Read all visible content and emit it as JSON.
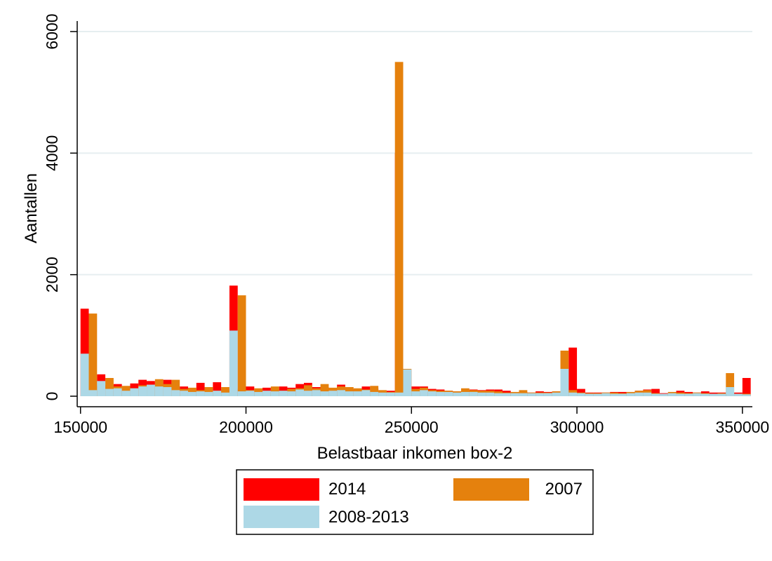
{
  "chart_data": {
    "type": "bar",
    "xlabel": "Belastbaar inkomen box-2",
    "ylabel": "Aantallen",
    "xlim": [
      149000,
      353000
    ],
    "ylim": [
      0,
      6000
    ],
    "x_ticks": [
      150000,
      200000,
      250000,
      300000,
      350000
    ],
    "y_ticks": [
      0,
      2000,
      4000,
      6000
    ],
    "grid": "horizontal",
    "legend_position": "bottom",
    "bin_width": 2500,
    "series": [
      {
        "name": "2014",
        "color": "#ff0000",
        "x": [
          151250,
          153750,
          156250,
          158750,
          161250,
          163750,
          166250,
          168750,
          171250,
          173750,
          176250,
          178750,
          181250,
          183750,
          186250,
          188750,
          191250,
          193750,
          196250,
          198750,
          201250,
          203750,
          206250,
          208750,
          211250,
          213750,
          216250,
          218750,
          221250,
          223750,
          226250,
          228750,
          231250,
          233750,
          236250,
          238750,
          241250,
          243750,
          246250,
          248750,
          251250,
          253750,
          256250,
          258750,
          261250,
          263750,
          266250,
          268750,
          271250,
          273750,
          276250,
          278750,
          281250,
          283750,
          286250,
          288750,
          291250,
          293750,
          296250,
          298750,
          301250,
          303750,
          306250,
          308750,
          311250,
          313750,
          316250,
          318750,
          321250,
          323750,
          326250,
          328750,
          331250,
          333750,
          336250,
          338750,
          341250,
          343750,
          346250,
          348750,
          351250
        ],
        "values": [
          1440,
          170,
          360,
          180,
          200,
          140,
          210,
          270,
          250,
          230,
          270,
          130,
          160,
          110,
          220,
          90,
          230,
          110,
          1820,
          120,
          160,
          90,
          140,
          110,
          160,
          140,
          200,
          220,
          150,
          150,
          120,
          190,
          110,
          120,
          160,
          130,
          80,
          90,
          4000,
          430,
          160,
          160,
          120,
          110,
          90,
          80,
          90,
          110,
          100,
          110,
          110,
          90,
          60,
          70,
          60,
          80,
          70,
          80,
          100,
          800,
          120,
          60,
          60,
          60,
          70,
          70,
          60,
          90,
          110,
          120,
          50,
          50,
          90,
          70,
          60,
          80,
          60,
          60,
          40,
          60,
          300
        ]
      },
      {
        "name": "2007",
        "color": "#e5810d",
        "x": [
          153750,
          156250,
          158750,
          161250,
          163750,
          166250,
          168750,
          171250,
          173750,
          176250,
          178750,
          181250,
          183750,
          186250,
          188750,
          191250,
          193750,
          196250,
          198750,
          201250,
          203750,
          206250,
          208750,
          211250,
          213750,
          216250,
          218750,
          221250,
          223750,
          226250,
          228750,
          231250,
          233750,
          236250,
          238750,
          241250,
          243750,
          246250,
          248750,
          251250,
          253750,
          256250,
          258750,
          261250,
          263750,
          266250,
          268750,
          271250,
          273750,
          276250,
          278750,
          281250,
          283750,
          286250,
          288750,
          291250,
          293750,
          296250,
          298750,
          301250,
          303750,
          306250,
          308750,
          311250,
          313750,
          316250,
          318750,
          321250,
          323750,
          326250,
          328750,
          331250,
          333750,
          336250,
          338750,
          341250,
          343750,
          346250,
          348750,
          351250
        ],
        "values": [
          1360,
          130,
          300,
          160,
          170,
          130,
          180,
          180,
          280,
          200,
          270,
          120,
          140,
          100,
          150,
          90,
          150,
          80,
          1660,
          100,
          130,
          80,
          160,
          90,
          120,
          130,
          180,
          130,
          200,
          140,
          160,
          150,
          130,
          110,
          170,
          100,
          70,
          5500,
          450,
          120,
          140,
          100,
          90,
          90,
          80,
          130,
          100,
          90,
          90,
          80,
          60,
          70,
          100,
          60,
          60,
          60,
          80,
          750,
          100,
          60,
          50,
          50,
          60,
          60,
          50,
          70,
          90,
          100,
          50,
          40,
          70,
          60,
          50,
          60,
          50,
          40,
          50,
          380,
          40,
          40
        ]
      },
      {
        "name": "2008-2013",
        "color": "#add8e6",
        "x": [
          151250,
          153750,
          156250,
          158750,
          161250,
          163750,
          166250,
          168750,
          171250,
          173750,
          176250,
          178750,
          181250,
          183750,
          186250,
          188750,
          191250,
          193750,
          196250,
          198750,
          201250,
          203750,
          206250,
          208750,
          211250,
          213750,
          216250,
          218750,
          221250,
          223750,
          226250,
          228750,
          231250,
          233750,
          236250,
          238750,
          241250,
          243750,
          246250,
          248750,
          251250,
          253750,
          256250,
          258750,
          261250,
          263750,
          266250,
          268750,
          271250,
          273750,
          276250,
          278750,
          281250,
          283750,
          286250,
          288750,
          291250,
          293750,
          296250,
          298750,
          301250,
          303750,
          306250,
          308750,
          311250,
          313750,
          316250,
          318750,
          321250,
          323750,
          326250,
          328750,
          331250,
          333750,
          336250,
          338750,
          341250,
          343750,
          346250,
          348750,
          351250
        ],
        "values": [
          700,
          100,
          250,
          120,
          130,
          90,
          130,
          160,
          190,
          160,
          150,
          100,
          90,
          70,
          80,
          70,
          90,
          60,
          1080,
          80,
          90,
          70,
          90,
          80,
          90,
          80,
          110,
          90,
          100,
          80,
          90,
          100,
          80,
          80,
          100,
          70,
          60,
          60,
          60,
          440,
          80,
          100,
          80,
          70,
          70,
          60,
          70,
          70,
          60,
          60,
          50,
          50,
          50,
          50,
          50,
          50,
          50,
          60,
          450,
          60,
          50,
          40,
          40,
          50,
          40,
          40,
          50,
          60,
          60,
          40,
          40,
          50,
          40,
          40,
          50,
          40,
          40,
          40,
          150,
          40,
          30
        ]
      }
    ],
    "legend": [
      {
        "label": "2014",
        "color": "#ff0000"
      },
      {
        "label": "2007",
        "color": "#e5810d"
      },
      {
        "label": "2008-2013",
        "color": "#add8e6"
      }
    ]
  }
}
